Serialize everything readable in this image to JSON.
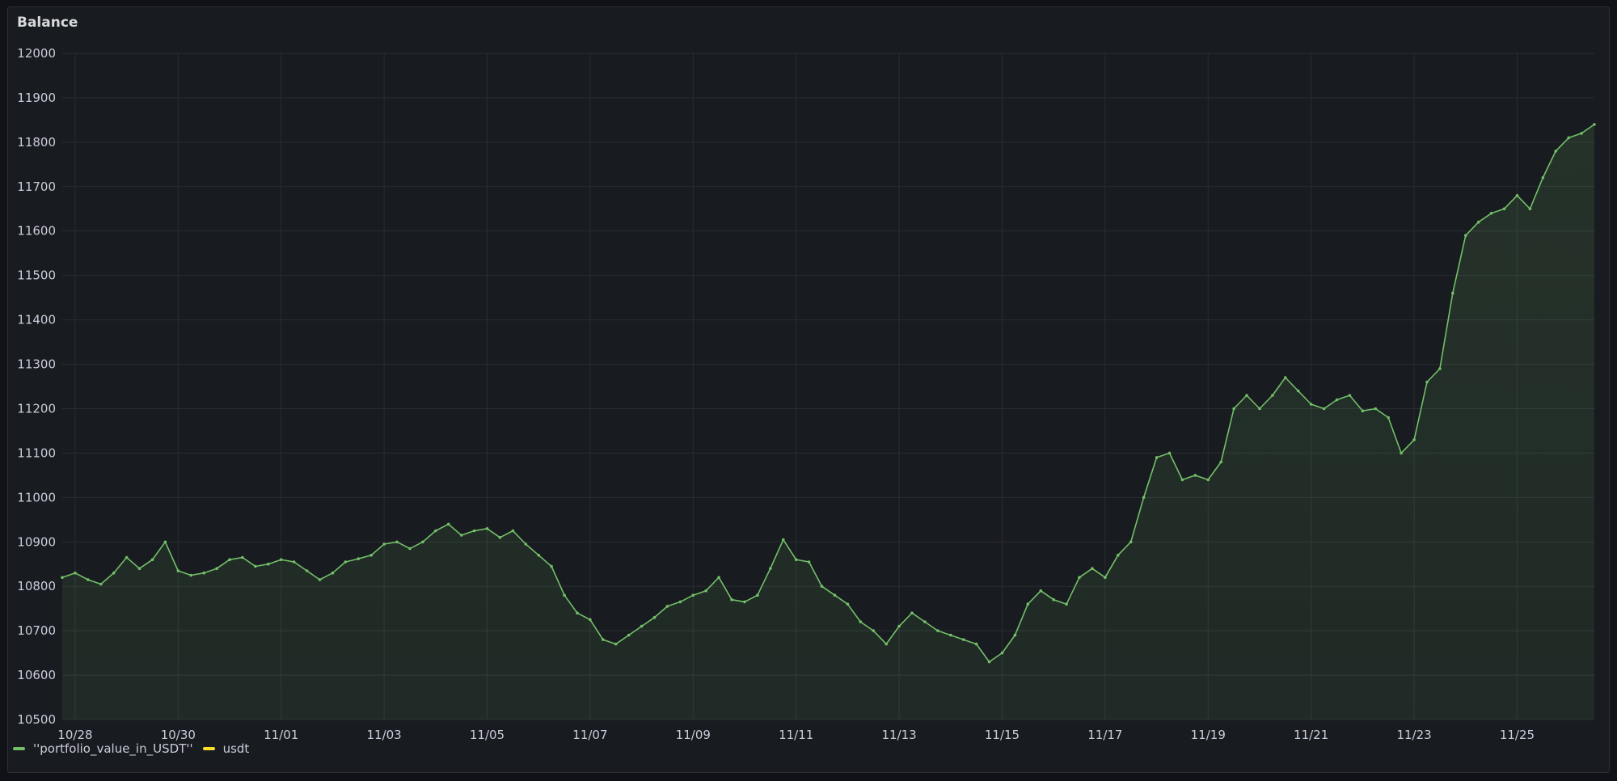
{
  "panel": {
    "title": "Balance"
  },
  "chart_data": {
    "type": "line",
    "title": "Balance",
    "xlabel": "",
    "ylabel": "",
    "ylim": [
      10500,
      12000
    ],
    "yticks": [
      "10500",
      "10600",
      "10700",
      "10800",
      "10900",
      "11000",
      "11100",
      "11200",
      "11300",
      "11400",
      "11500",
      "11600",
      "11700",
      "11800",
      "11900",
      "12000"
    ],
    "xlim": [
      "10/27 18:00",
      "11/26 12:00"
    ],
    "xticks": [
      "10/28",
      "10/30",
      "11/01",
      "11/03",
      "11/05",
      "11/07",
      "11/09",
      "11/11",
      "11/13",
      "11/15",
      "11/17",
      "11/19",
      "11/21",
      "11/23",
      "11/25"
    ],
    "grid": true,
    "legend_position": "bottom-left",
    "series": [
      {
        "name": "''portfolio_value_in_USDT''",
        "color": "#73bf69",
        "x": [
          "10/27 18:00",
          "10/28 00:00",
          "10/28 06:00",
          "10/28 12:00",
          "10/28 18:00",
          "10/29 00:00",
          "10/29 06:00",
          "10/29 12:00",
          "10/29 18:00",
          "10/30 00:00",
          "10/30 06:00",
          "10/30 12:00",
          "10/30 18:00",
          "10/31 00:00",
          "10/31 06:00",
          "10/31 12:00",
          "10/31 18:00",
          "11/01 00:00",
          "11/01 06:00",
          "11/01 12:00",
          "11/01 18:00",
          "11/02 00:00",
          "11/02 06:00",
          "11/02 12:00",
          "11/02 18:00",
          "11/03 00:00",
          "11/03 06:00",
          "11/03 12:00",
          "11/03 18:00",
          "11/04 00:00",
          "11/04 06:00",
          "11/04 12:00",
          "11/04 18:00",
          "11/05 00:00",
          "11/05 06:00",
          "11/05 12:00",
          "11/05 18:00",
          "11/06 00:00",
          "11/06 06:00",
          "11/06 12:00",
          "11/06 18:00",
          "11/07 00:00",
          "11/07 06:00",
          "11/07 12:00",
          "11/07 18:00",
          "11/08 00:00",
          "11/08 06:00",
          "11/08 12:00",
          "11/08 18:00",
          "11/09 00:00",
          "11/09 06:00",
          "11/09 12:00",
          "11/09 18:00",
          "11/10 00:00",
          "11/10 06:00",
          "11/10 12:00",
          "11/10 18:00",
          "11/11 00:00",
          "11/11 06:00",
          "11/11 12:00",
          "11/11 18:00",
          "11/12 00:00",
          "11/12 06:00",
          "11/12 12:00",
          "11/12 18:00",
          "11/13 00:00",
          "11/13 06:00",
          "11/13 12:00",
          "11/13 18:00",
          "11/14 00:00",
          "11/14 06:00",
          "11/14 12:00",
          "11/14 18:00",
          "11/15 00:00",
          "11/15 06:00",
          "11/15 12:00",
          "11/15 18:00",
          "11/16 00:00",
          "11/16 06:00",
          "11/16 12:00",
          "11/16 18:00",
          "11/17 00:00",
          "11/17 06:00",
          "11/17 12:00",
          "11/17 18:00",
          "11/18 00:00",
          "11/18 06:00",
          "11/18 12:00",
          "11/18 18:00",
          "11/19 00:00",
          "11/19 06:00",
          "11/19 12:00",
          "11/19 18:00",
          "11/20 00:00",
          "11/20 06:00",
          "11/20 12:00",
          "11/20 18:00",
          "11/21 00:00",
          "11/21 06:00",
          "11/21 12:00",
          "11/21 18:00",
          "11/22 00:00",
          "11/22 06:00",
          "11/22 12:00",
          "11/22 18:00",
          "11/23 00:00",
          "11/23 06:00",
          "11/23 12:00",
          "11/23 18:00",
          "11/24 00:00",
          "11/24 06:00",
          "11/24 12:00",
          "11/24 18:00",
          "11/25 00:00",
          "11/25 06:00",
          "11/25 12:00",
          "11/25 18:00",
          "11/26 00:00",
          "11/26 06:00",
          "11/26 12:00"
        ],
        "values": [
          10820,
          10830,
          10815,
          10805,
          10830,
          10865,
          10840,
          10860,
          10900,
          10835,
          10825,
          10830,
          10840,
          10860,
          10865,
          10845,
          10850,
          10860,
          10855,
          10835,
          10815,
          10830,
          10855,
          10862,
          10870,
          10895,
          10900,
          10885,
          10900,
          10925,
          10940,
          10915,
          10925,
          10930,
          10910,
          10925,
          10895,
          10870,
          10845,
          10780,
          10740,
          10725,
          10680,
          10670,
          10690,
          10710,
          10730,
          10755,
          10765,
          10780,
          10790,
          10820,
          10770,
          10765,
          10780,
          10840,
          10905,
          10860,
          10855,
          10800,
          10780,
          10760,
          10720,
          10700,
          10670,
          10710,
          10740,
          10720,
          10700,
          10690,
          10680,
          10670,
          10630,
          10650,
          10690,
          10760,
          10790,
          10770,
          10760,
          10820,
          10840,
          10820,
          10870,
          10900,
          11000,
          11090,
          11100,
          11040,
          11050,
          11040,
          11080,
          11200,
          11230,
          11200,
          11230,
          11270,
          11240,
          11210,
          11200,
          11220,
          11230,
          11195,
          11200,
          11180,
          11100,
          11130,
          11260,
          11290,
          11460,
          11590,
          11620,
          11640,
          11650,
          11680,
          11650,
          11720,
          11780,
          11810,
          11820,
          11840
        ]
      },
      {
        "name": "usdt",
        "color": "#fade2a"
      }
    ]
  }
}
